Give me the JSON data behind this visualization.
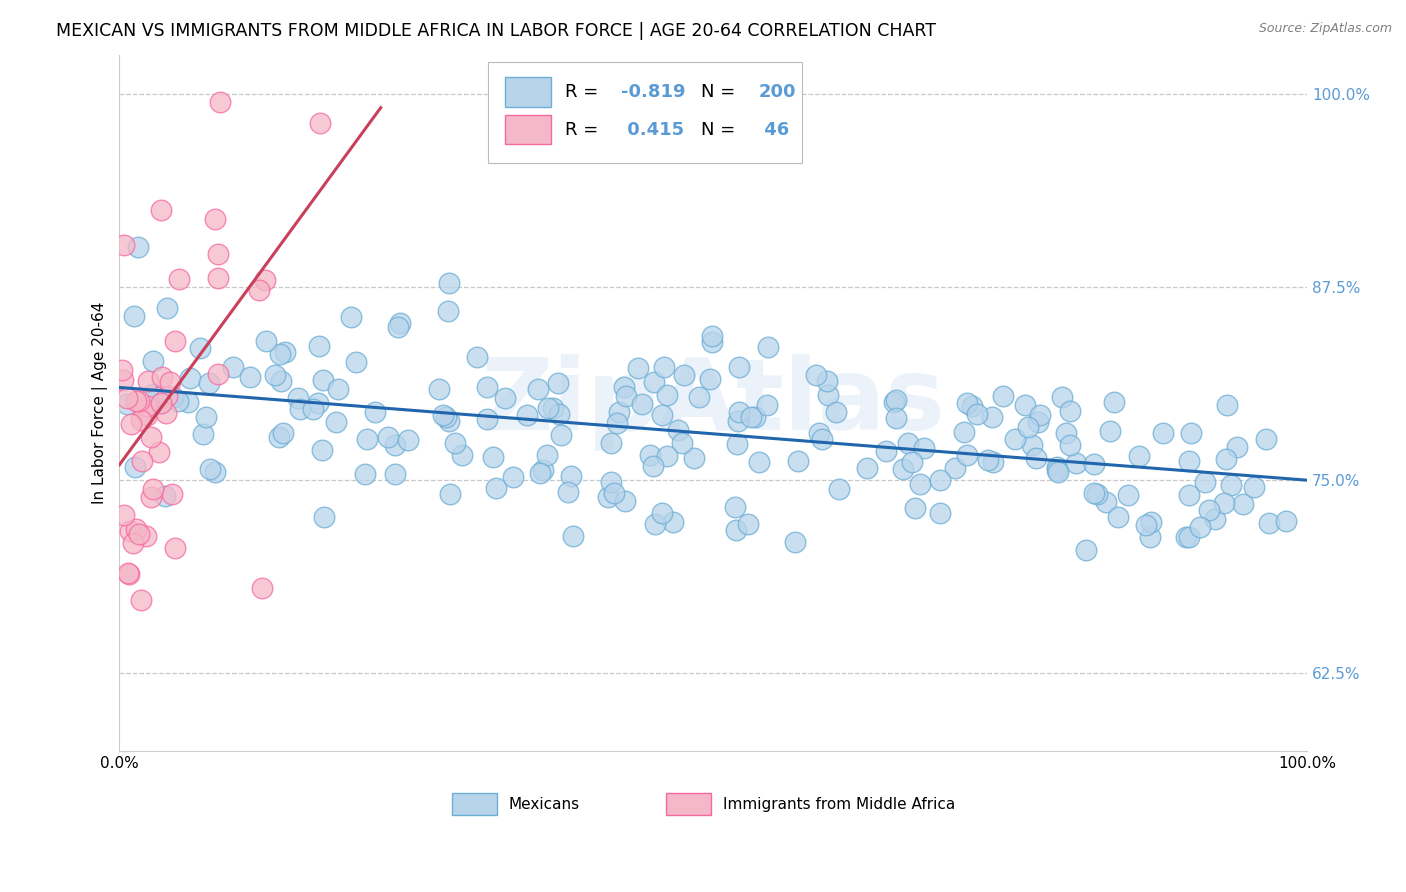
{
  "title": "MEXICAN VS IMMIGRANTS FROM MIDDLE AFRICA IN LABOR FORCE | AGE 20-64 CORRELATION CHART",
  "source": "Source: ZipAtlas.com",
  "ylabel": "In Labor Force | Age 20-64",
  "xlim": [
    0.0,
    1.0
  ],
  "ylim": [
    0.575,
    1.025
  ],
  "yticks": [
    0.625,
    0.75,
    0.875,
    1.0
  ],
  "ytick_labels": [
    "62.5%",
    "75.0%",
    "87.5%",
    "100.0%"
  ],
  "xticks": [
    0.0,
    1.0
  ],
  "xtick_labels": [
    "0.0%",
    "100.0%"
  ],
  "legend_labels_bottom": [
    "Mexicans",
    "Immigrants from Middle Africa"
  ],
  "blue_edge_color": "#6baed6",
  "pink_edge_color": "#f768a1",
  "blue_line_color": "#2166ac",
  "pink_line_color": "#c9405a",
  "blue_fill_color": "#b8d4ea",
  "pink_fill_color": "#f4b8c8",
  "ytick_color": "#5b9bd5",
  "watermark": "ZipAtlas",
  "title_fontsize": 12.5,
  "axis_label_fontsize": 11,
  "tick_fontsize": 11,
  "legend_fontsize": 13,
  "blue_R": -0.819,
  "blue_N": 200,
  "pink_R": 0.415,
  "pink_N": 46,
  "blue_intercept": 0.81,
  "blue_slope": -0.06,
  "pink_intercept": 0.76,
  "pink_slope": 1.05,
  "pink_x_max_line": 0.22,
  "background_color": "#ffffff",
  "grid_color": "#c8c8c8"
}
